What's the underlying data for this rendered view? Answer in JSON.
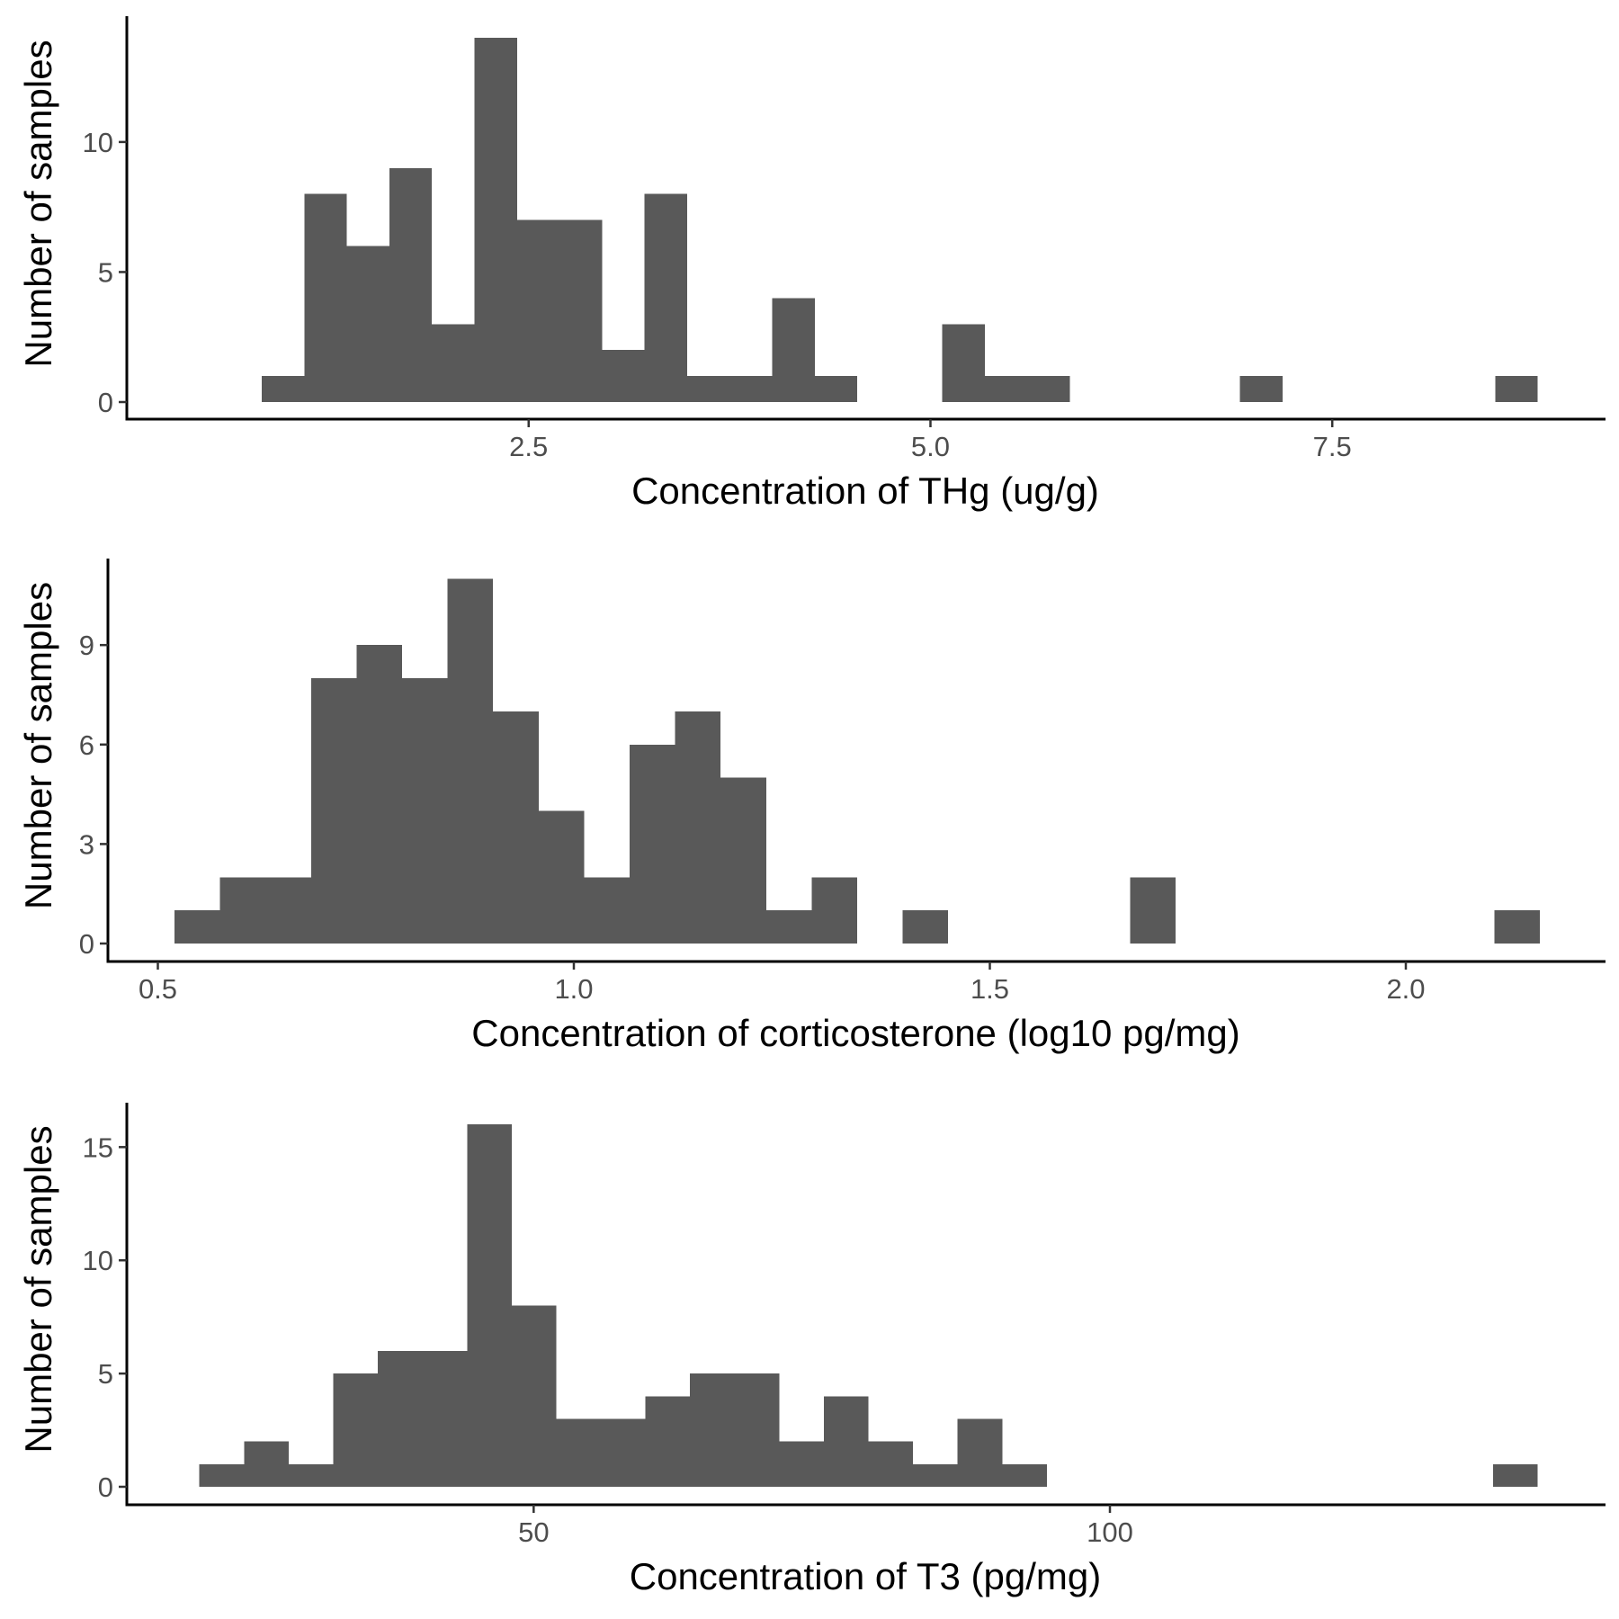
{
  "chart_data": [
    {
      "type": "bar",
      "subtype": "histogram",
      "xlabel": "Concentration of THg (ug/g)",
      "ylabel": "Number of samples",
      "bin_width": 0.2646,
      "bin_starts": [
        0.84,
        1.1046,
        1.3692,
        1.6338,
        1.8984,
        2.163,
        2.4276,
        2.6922,
        2.9568,
        3.2214,
        3.486,
        3.7506,
        4.0152,
        4.2798,
        4.5444,
        4.809,
        5.0736,
        5.3382,
        5.6028,
        5.8674,
        6.132,
        6.3966,
        6.6612,
        6.9258,
        7.1904,
        7.455,
        7.7196,
        7.9842,
        8.2488,
        8.5134
      ],
      "values": [
        1,
        8,
        6,
        9,
        3,
        14,
        7,
        7,
        2,
        8,
        1,
        1,
        4,
        1,
        0,
        0,
        3,
        1,
        1,
        0,
        0,
        0,
        0,
        1,
        0,
        0,
        0,
        0,
        0,
        1
      ],
      "xlim": [
        0.0,
        9.2
      ],
      "ylim": [
        0,
        14.7
      ],
      "xticks": [
        2.5,
        5.0,
        7.5
      ],
      "xtick_labels": [
        "2.5",
        "5.0",
        "7.5"
      ],
      "yticks": [
        0,
        5,
        10
      ],
      "ytick_labels": [
        "0",
        "5",
        "10"
      ],
      "bar_color": "#595959"
    },
    {
      "type": "bar",
      "subtype": "histogram",
      "xlabel": "Concentration of corticosterone (log10 pg/mg)",
      "ylabel": "Number of samples",
      "bin_width": 0.0547,
      "bin_starts": [
        0.52,
        0.5747,
        0.6294,
        0.6841,
        0.7388,
        0.7935,
        0.8482,
        0.9029,
        0.9576,
        1.0123,
        1.067,
        1.1217,
        1.1764,
        1.2311,
        1.2858,
        1.3405,
        1.3952,
        1.4499,
        1.5046,
        1.5593,
        1.614,
        1.6687,
        1.7234,
        1.7781,
        1.8328,
        1.8875,
        1.9422,
        1.9969,
        2.0516,
        2.1063
      ],
      "values": [
        1,
        2,
        2,
        8,
        9,
        8,
        11,
        7,
        4,
        2,
        6,
        7,
        5,
        1,
        2,
        0,
        1,
        0,
        0,
        0,
        0,
        2,
        0,
        0,
        0,
        0,
        0,
        0,
        0,
        1
      ],
      "xlim": [
        0.44,
        2.24
      ],
      "ylim": [
        0,
        11.5
      ],
      "xticks": [
        0.5,
        1.0,
        1.5,
        2.0
      ],
      "xtick_labels": [
        "0.5",
        "1.0",
        "1.5",
        "2.0"
      ],
      "yticks": [
        0,
        3,
        6,
        9
      ],
      "ytick_labels": [
        "0",
        "3",
        "6",
        "9"
      ],
      "bar_color": "#595959"
    },
    {
      "type": "bar",
      "subtype": "histogram",
      "xlabel": "Concentration of T3 (pg/mg)",
      "ylabel": "Number of samples",
      "bin_width": 3.87,
      "bin_starts": [
        21.0,
        24.87,
        28.74,
        32.61,
        36.48,
        40.35,
        44.22,
        48.09,
        51.96,
        55.83,
        59.7,
        63.57,
        67.44,
        71.31,
        75.18,
        79.05,
        82.92,
        86.79,
        90.66,
        94.53,
        98.4,
        102.27,
        106.14,
        110.01,
        113.88,
        117.75,
        121.62,
        125.49,
        129.36,
        133.23
      ],
      "values": [
        1,
        2,
        1,
        5,
        6,
        6,
        16,
        8,
        3,
        3,
        4,
        5,
        5,
        2,
        4,
        2,
        1,
        3,
        1,
        0,
        0,
        0,
        0,
        0,
        0,
        0,
        0,
        0,
        0,
        1
      ],
      "xlim": [
        14.7,
        143.0
      ],
      "ylim": [
        0,
        16.8
      ],
      "xticks": [
        50,
        100
      ],
      "xtick_labels": [
        "50",
        "100"
      ],
      "yticks": [
        0,
        5,
        10,
        15
      ],
      "ytick_labels": [
        "0",
        "5",
        "10",
        "15"
      ],
      "bar_color": "#595959"
    }
  ]
}
